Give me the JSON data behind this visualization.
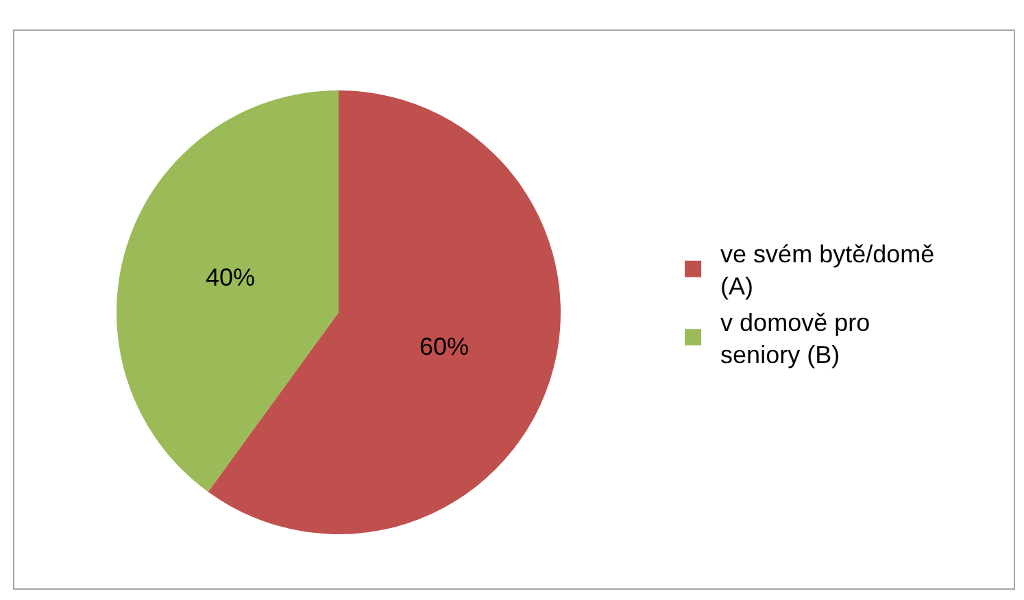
{
  "chart_data": {
    "type": "pie",
    "categories": [
      "ve svém bytě/domě (A)",
      "v domově pro seniory (B)"
    ],
    "values": [
      60,
      40
    ],
    "colors": [
      "#c0504d",
      "#9bbb59"
    ],
    "value_labels": [
      "60%",
      "40%"
    ],
    "legend": "right"
  }
}
